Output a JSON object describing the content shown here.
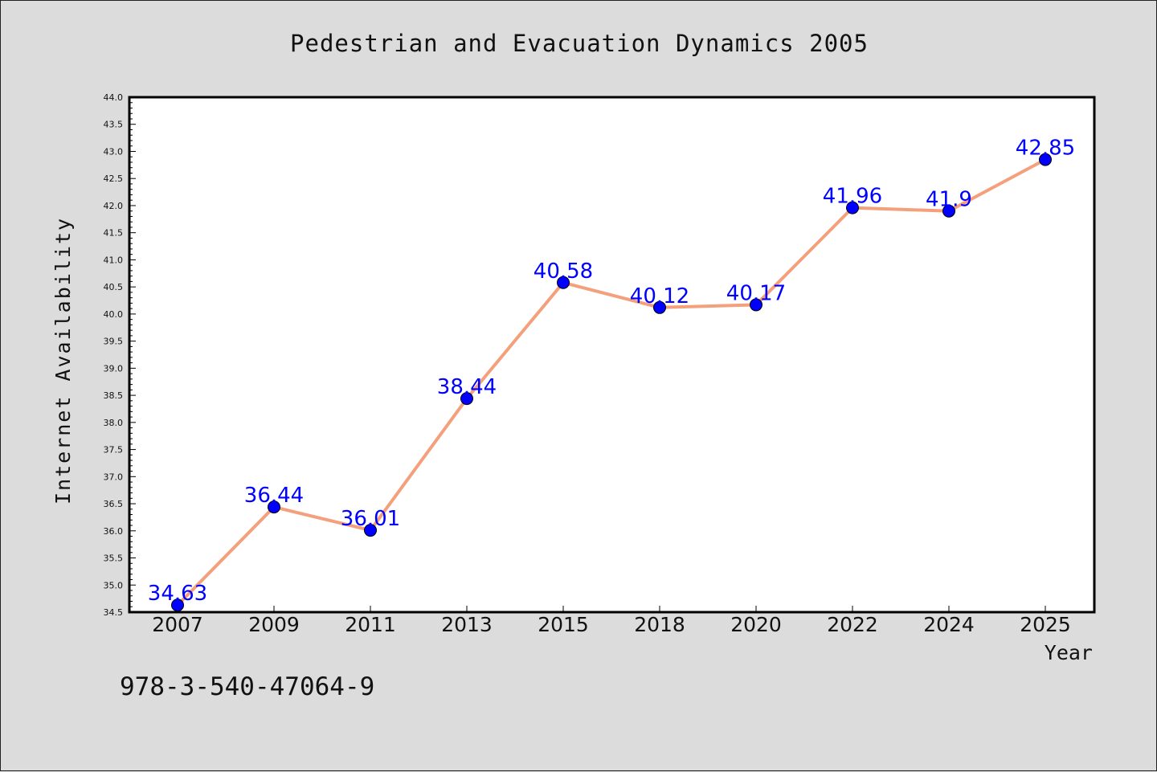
{
  "colors": {
    "background": "#dcdcdc",
    "plot_background": "#ffffff",
    "line": "#f4a07c",
    "marker": "#0000ff",
    "data_label": "#0000ff",
    "text": "#111111"
  },
  "footnote": "978-3-540-47064-9",
  "chart_data": {
    "type": "line",
    "title": "Pedestrian and Evacuation Dynamics 2005",
    "xlabel": "Year",
    "ylabel": "Internet Availability",
    "categories": [
      "2007",
      "2009",
      "2011",
      "2013",
      "2015",
      "2018",
      "2020",
      "2022",
      "2024",
      "2025"
    ],
    "series": [
      {
        "values": [
          34.63,
          36.44,
          36.01,
          38.44,
          40.58,
          40.12,
          40.17,
          41.96,
          41.9,
          42.85
        ],
        "labels": [
          "34.63",
          "36.44",
          "36.01",
          "38.44",
          "40.58",
          "40.12",
          "40.17",
          "41.96",
          "41.9",
          "42.85"
        ]
      }
    ],
    "ylim": [
      34.5,
      44.0
    ],
    "yticks": [
      "34.5",
      "35.0",
      "35.5",
      "36.0",
      "36.5",
      "37.0",
      "37.5",
      "38.0",
      "38.5",
      "39.0",
      "39.5",
      "40.0",
      "40.5",
      "41.0",
      "41.5",
      "42.0",
      "42.5",
      "43.0",
      "43.5",
      "44.0"
    ],
    "grid": false,
    "legend": "none"
  }
}
